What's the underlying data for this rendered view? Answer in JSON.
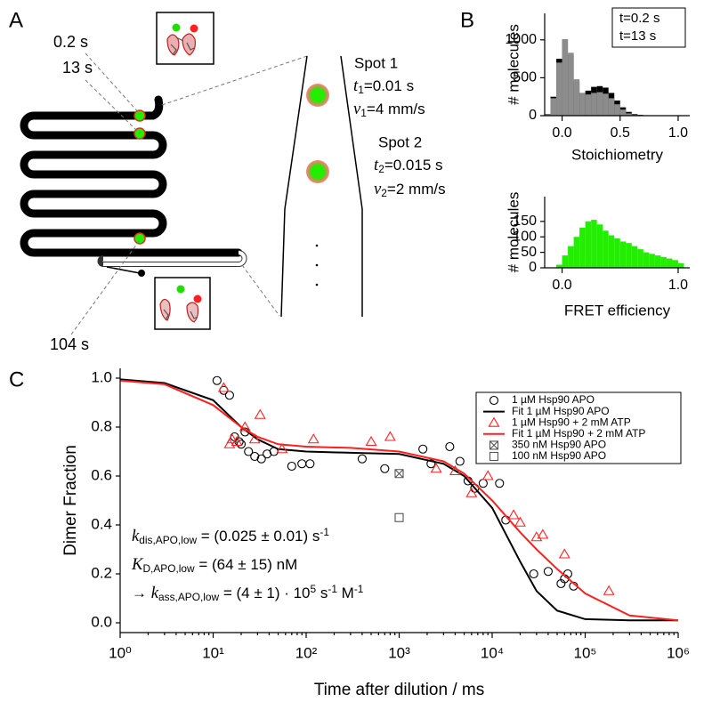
{
  "panel_labels": [
    "A",
    "B",
    "C"
  ],
  "panel_a": {
    "times": [
      "0.2 s",
      "13 s",
      "104 s"
    ],
    "spots": [
      {
        "name": "Spot 1",
        "lines": [
          [
            {
              "text": "t",
              "style": "italic"
            },
            {
              "text": "1",
              "style": "sub"
            },
            {
              "text": "=0.01 s",
              "style": "normal"
            }
          ],
          [
            {
              "text": "v",
              "style": "italic"
            },
            {
              "text": "1",
              "style": "sub"
            },
            {
              "text": "=4 mm/s",
              "style": "normal"
            }
          ]
        ]
      },
      {
        "name": "Spot 2",
        "lines": [
          [
            {
              "text": "t",
              "style": "italic"
            },
            {
              "text": "2",
              "style": "sub"
            },
            {
              "text": "=0.015 s",
              "style": "normal"
            }
          ],
          [
            {
              "text": "v",
              "style": "italic"
            },
            {
              "text": "2",
              "style": "sub"
            },
            {
              "text": "=2 mm/s",
              "style": "normal"
            }
          ]
        ]
      }
    ]
  },
  "chart_data": [
    {
      "type": "histogram",
      "xlabel": "Stoichiometry",
      "ylabel": "# molecules",
      "bins": [
        -0.15,
        -0.1,
        -0.05,
        0,
        0.05,
        0.1,
        0.15,
        0.2,
        0.25,
        0.3,
        0.35,
        0.4,
        0.45,
        0.5,
        0.55,
        0.6,
        0.65,
        0.7,
        0.75,
        0.8,
        0.85,
        0.9,
        0.95,
        1.0,
        1.05,
        1.1
      ],
      "series": [
        {
          "name": "t=0.2 s",
          "color": "#000000",
          "values": [
            20,
            250,
            750,
            1000,
            800,
            450,
            300,
            330,
            380,
            390,
            370,
            300,
            200,
            110,
            50,
            20,
            10,
            5,
            3,
            2,
            1,
            1,
            0,
            0,
            0
          ]
        },
        {
          "name": "t=13 s",
          "color": "#8c8c8c",
          "values": [
            15,
            230,
            700,
            1010,
            830,
            480,
            300,
            280,
            300,
            310,
            290,
            230,
            150,
            80,
            30,
            10,
            5,
            3,
            2,
            1,
            0,
            0,
            0,
            0,
            0
          ]
        }
      ],
      "xlim": [
        -0.15,
        1.1
      ],
      "ylim": [
        0,
        1350
      ],
      "xticks": [
        {
          "value": 0,
          "label": "0.0"
        },
        0.5,
        {
          "value": 1,
          "label": "1.0"
        }
      ],
      "yticks": [
        0,
        500,
        1000
      ],
      "legend": "upper right"
    },
    {
      "type": "histogram",
      "xlabel": "FRET efficiency",
      "ylabel": "# molecules",
      "bins": [
        -0.15,
        -0.1,
        -0.05,
        0,
        0.05,
        0.1,
        0.15,
        0.2,
        0.25,
        0.3,
        0.35,
        0.4,
        0.45,
        0.5,
        0.55,
        0.6,
        0.65,
        0.7,
        0.75,
        0.8,
        0.85,
        0.9,
        0.95,
        1.0,
        1.05,
        1.1
      ],
      "series": [
        {
          "color": "#22ee00",
          "values": [
            0,
            0,
            10,
            40,
            70,
            100,
            130,
            150,
            155,
            140,
            120,
            105,
            95,
            85,
            80,
            70,
            60,
            50,
            45,
            40,
            35,
            30,
            25,
            15,
            0
          ]
        }
      ],
      "xlim": [
        -0.15,
        1.1
      ],
      "ylim": [
        0,
        230
      ],
      "xticks": [
        {
          "value": 0,
          "label": "0.0"
        },
        {
          "value": 1,
          "label": "1.0"
        }
      ],
      "yticks": [
        0,
        50,
        100,
        150
      ]
    },
    {
      "type": "scatter",
      "xlabel": "Time after dilution / ms",
      "ylabel": "Dimer Fraction",
      "xlog": true,
      "xlim": [
        1,
        1000000
      ],
      "ylim": [
        -0.04,
        1.04
      ],
      "xticks": [
        {
          "value": 1,
          "label": "10⁰"
        },
        {
          "value": 10,
          "label": "10¹"
        },
        {
          "value": 100,
          "label": "10²"
        },
        {
          "value": 1000,
          "label": "10³"
        },
        {
          "value": 10000,
          "label": "10⁴"
        },
        {
          "value": 100000,
          "label": "10⁵"
        },
        {
          "value": 1000000,
          "label": "10⁶"
        }
      ],
      "yticks": [
        {
          "value": 0,
          "label": "0.0"
        },
        0.2,
        0.4,
        0.6,
        0.8,
        {
          "value": 1,
          "label": "1.0"
        }
      ],
      "legend": "upper right",
      "series": [
        {
          "name": "1 µM Hsp90 APO",
          "color": "#000000",
          "marker": "circle",
          "x": [
            11,
            13,
            15,
            17,
            19,
            20,
            22,
            24,
            28,
            33,
            38,
            45,
            70,
            90,
            110,
            400,
            700,
            1800,
            2200,
            3500,
            4500,
            5500,
            6500,
            8000,
            12000,
            14000,
            28000,
            40000,
            55000,
            60000,
            65000,
            75000
          ],
          "values": [
            0.99,
            0.95,
            0.93,
            0.76,
            0.74,
            0.73,
            0.78,
            0.7,
            0.68,
            0.67,
            0.69,
            0.7,
            0.64,
            0.65,
            0.65,
            0.67,
            0.63,
            0.71,
            0.65,
            0.72,
            0.66,
            0.58,
            0.55,
            0.57,
            0.57,
            0.42,
            0.2,
            0.21,
            0.16,
            0.18,
            0.2,
            0.15
          ]
        },
        {
          "name": "Fit 1 µM Hsp90 APO",
          "color": "#000000",
          "marker": "line",
          "x": [
            1,
            3,
            10,
            20,
            30,
            50,
            100,
            300,
            1000,
            3000,
            5000,
            10000,
            20000,
            30000,
            50000,
            100000,
            300000,
            1000000
          ],
          "values": [
            0.995,
            0.98,
            0.91,
            0.8,
            0.75,
            0.71,
            0.7,
            0.695,
            0.69,
            0.65,
            0.6,
            0.47,
            0.25,
            0.13,
            0.05,
            0.015,
            0.01,
            0.01
          ]
        },
        {
          "name": "1 µM Hsp90 + 2 mM ATP",
          "color": "#ff2020",
          "marker": "triangle",
          "x": [
            13,
            15,
            16,
            18,
            22,
            28,
            32,
            55,
            120,
            500,
            800,
            2500,
            4000,
            6000,
            9000,
            17000,
            20000,
            30000,
            35000,
            60000,
            180000
          ],
          "values": [
            0.96,
            0.73,
            0.75,
            0.74,
            0.8,
            0.75,
            0.85,
            0.71,
            0.75,
            0.74,
            0.76,
            0.63,
            0.62,
            0.53,
            0.6,
            0.44,
            0.41,
            0.35,
            0.36,
            0.28,
            0.13
          ]
        },
        {
          "name": "Fit 1 µM Hsp90 + 2 mM ATP",
          "color": "#ff2020",
          "marker": "line",
          "x": [
            1,
            3,
            10,
            20,
            30,
            50,
            100,
            300,
            1000,
            3000,
            5000,
            10000,
            20000,
            30000,
            50000,
            100000,
            300000,
            1000000
          ],
          "values": [
            0.99,
            0.975,
            0.89,
            0.8,
            0.76,
            0.73,
            0.72,
            0.715,
            0.7,
            0.66,
            0.61,
            0.5,
            0.37,
            0.3,
            0.22,
            0.12,
            0.03,
            0.01
          ]
        },
        {
          "name": "350 nM Hsp90 APO",
          "color": "#555555",
          "marker": "crossed-square",
          "x": [
            1000
          ],
          "values": [
            0.61
          ]
        },
        {
          "name": "100 nM Hsp90 APO",
          "color": "#555555",
          "marker": "square",
          "x": [
            1000
          ],
          "values": [
            0.43
          ]
        }
      ],
      "annotations": [
        [
          {
            "text": "k",
            "style": "italic"
          },
          {
            "text": "dis,APO,low",
            "style": "sub"
          },
          {
            "text": " = (0.025 ± 0.01) s",
            "style": "normal"
          },
          {
            "text": "-1",
            "style": "sup"
          }
        ],
        [
          {
            "text": "K",
            "style": "italic"
          },
          {
            "text": "D,APO,low",
            "style": "sub"
          },
          {
            "text": " = (64 ± 15) nM",
            "style": "normal"
          }
        ],
        [
          {
            "text": "→  ",
            "style": "normal"
          },
          {
            "text": "k",
            "style": "italic"
          },
          {
            "text": "ass,APO,low",
            "style": "sub"
          },
          {
            "text": " = (4 ± 1) · 10",
            "style": "normal"
          },
          {
            "text": "5",
            "style": "sup"
          },
          {
            "text": " s",
            "style": "normal"
          },
          {
            "text": "-1",
            "style": "sup"
          },
          {
            "text": " M",
            "style": "normal"
          },
          {
            "text": "-1",
            "style": "sup"
          }
        ]
      ]
    }
  ]
}
